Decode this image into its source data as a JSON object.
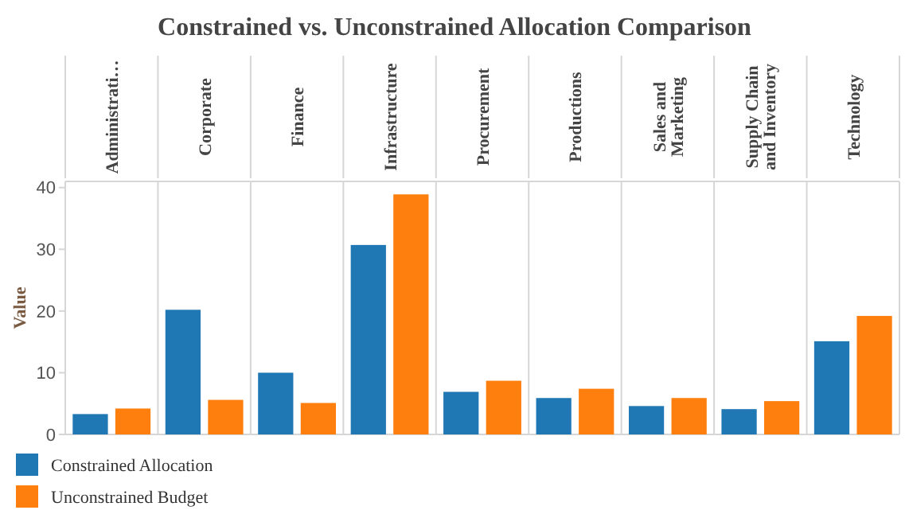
{
  "chart_data": {
    "type": "bar",
    "title": "Constrained vs. Unconstrained Allocation Comparison",
    "ylabel": "Value",
    "categories": [
      "Administrati…",
      "Corporate",
      "Finance",
      "Infrastructure",
      "Procurement",
      "Productions",
      "Sales and Marketing",
      "Supply Chain and Inventory",
      "Technology"
    ],
    "series": [
      {
        "name": "Constrained Allocation",
        "color": "#1f77b4",
        "values": [
          3.3,
          20.2,
          10.0,
          30.7,
          6.9,
          5.9,
          4.6,
          4.1,
          15.1
        ]
      },
      {
        "name": "Unconstrained Budget",
        "color": "#ff7f0e",
        "values": [
          4.2,
          5.6,
          5.1,
          38.9,
          8.7,
          7.4,
          5.9,
          5.4,
          19.2
        ]
      }
    ],
    "ylim": [
      0,
      41
    ],
    "yticks": [
      0,
      10,
      20,
      30,
      40
    ],
    "legend": "bottom left"
  }
}
